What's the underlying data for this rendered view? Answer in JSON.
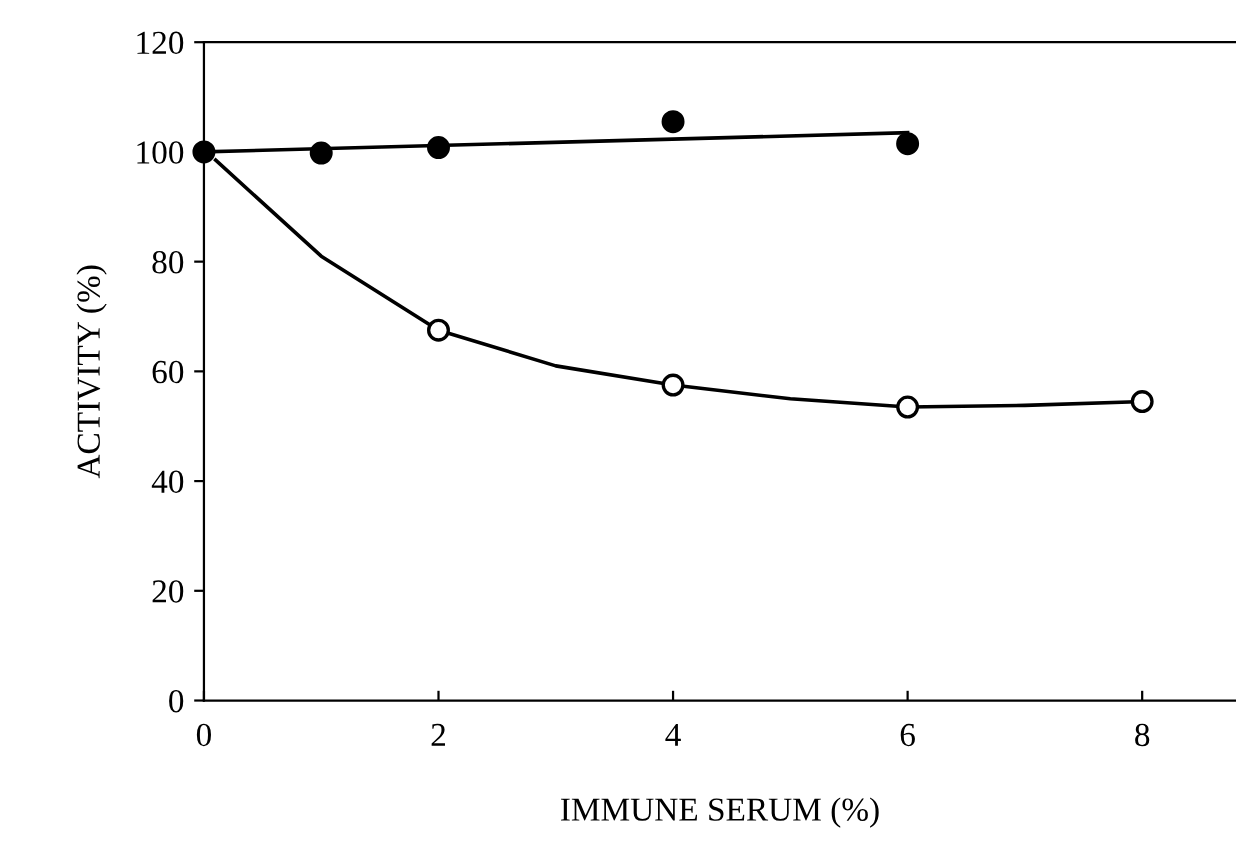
{
  "chart_data": {
    "type": "scatter",
    "xlabel": "IMMUNE SERUM (%)",
    "ylabel": "ACTIVITY (%)",
    "xlim": [
      0,
      8.8
    ],
    "ylim": [
      0,
      120
    ],
    "xticks": [
      0,
      2,
      4,
      6,
      8
    ],
    "yticks": [
      0,
      20,
      40,
      60,
      80,
      100,
      120
    ],
    "grid": false,
    "legend": false,
    "marker": "circle",
    "series": [
      {
        "type": "line",
        "color": "#000000",
        "marker": "none",
        "x": [
          0,
          6
        ],
        "values": [
          100,
          103.5
        ]
      },
      {
        "type": "line",
        "color": "#000000",
        "marker": "none",
        "x": [
          0.1,
          1,
          2,
          3,
          4,
          5,
          6,
          7,
          8
        ],
        "values": [
          98.5,
          81,
          67.5,
          61,
          57.5,
          55,
          53.5,
          53.8,
          54.5
        ]
      },
      {
        "color": "#000000",
        "x": [
          0,
          1,
          2,
          4,
          6
        ],
        "values": [
          100,
          99.8,
          100.8,
          105.5,
          101.5
        ]
      },
      {
        "color": "#ffffff",
        "x": [
          2,
          4,
          6,
          8
        ],
        "values": [
          67.5,
          57.5,
          53.5,
          54.5
        ]
      }
    ]
  }
}
